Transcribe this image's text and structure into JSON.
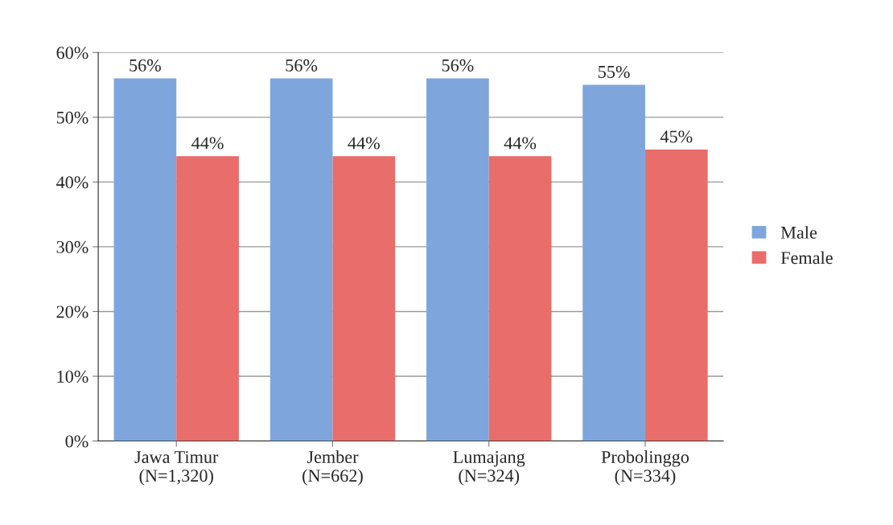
{
  "chart_data": {
    "type": "bar",
    "categories": [
      "Jawa Timur\n(N=1,320)",
      "Jember\n(N=662)",
      "Lumajang\n(N=324)",
      "Probolinggo\n(N=334)"
    ],
    "series": [
      {
        "name": "Male",
        "color": "#7ea6dc",
        "values": [
          56,
          56,
          56,
          55
        ],
        "value_labels": [
          "56%",
          "56%",
          "56%",
          "55%"
        ]
      },
      {
        "name": "Female",
        "color": "#e96d6a",
        "values": [
          44,
          44,
          44,
          45
        ],
        "value_labels": [
          "44%",
          "44%",
          "44%",
          "45%"
        ]
      }
    ],
    "ylim": [
      0,
      60
    ],
    "yticks": [
      {
        "value": 0,
        "label": "0%"
      },
      {
        "value": 10,
        "label": "10%"
      },
      {
        "value": 20,
        "label": "20%"
      },
      {
        "value": 30,
        "label": "30%"
      },
      {
        "value": 40,
        "label": "40%"
      },
      {
        "value": 50,
        "label": "50%"
      },
      {
        "value": 60,
        "label": "60%"
      }
    ],
    "grid": "y",
    "legend": "right"
  }
}
